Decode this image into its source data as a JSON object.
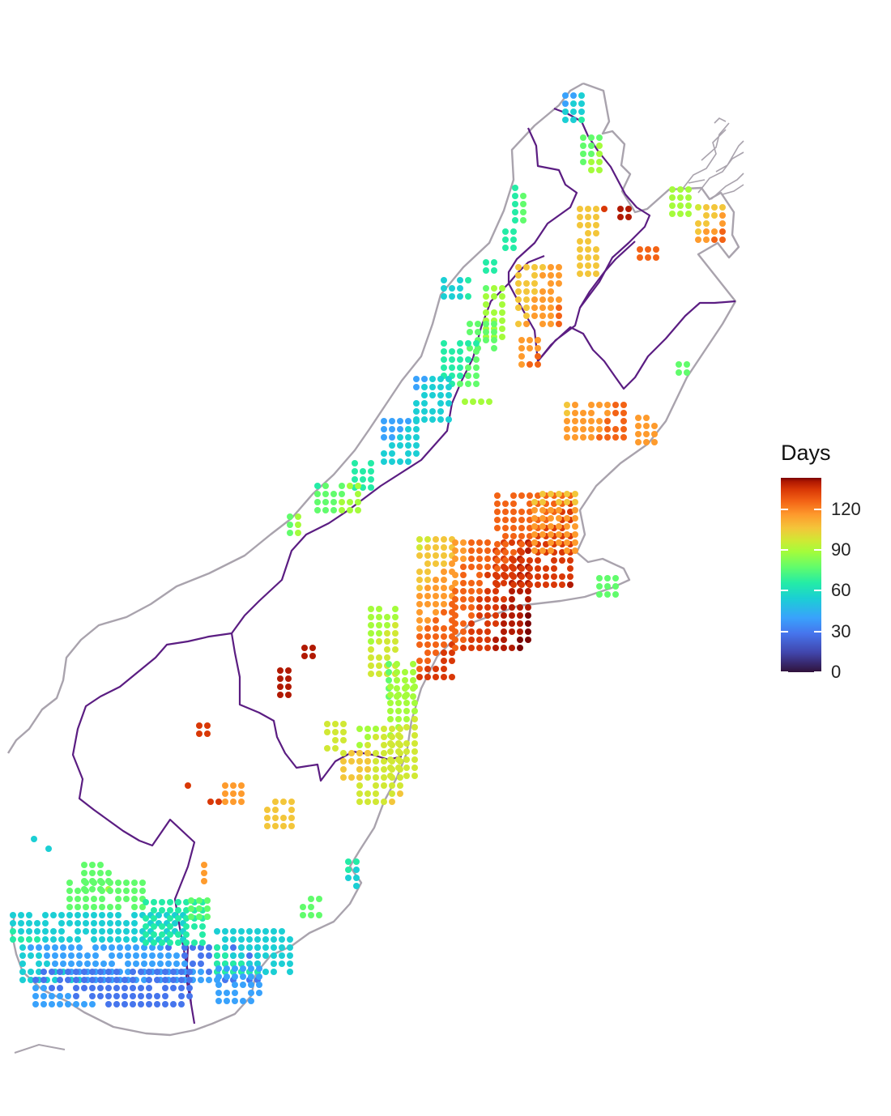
{
  "legend": {
    "title": "Days",
    "ticks": [
      "120",
      "90",
      "60",
      "30",
      "0"
    ],
    "tick_values": [
      120,
      90,
      60,
      30,
      0
    ],
    "range": [
      0,
      143
    ]
  },
  "colors": {
    "coastline": "#a9a3ad",
    "region_boundary": "#5b1d82",
    "scale": [
      "#30123b",
      "#4145ab",
      "#4675ed",
      "#39a2fc",
      "#1bcfd4",
      "#24eca6",
      "#61fc6c",
      "#a4fc3b",
      "#d1e834",
      "#f3c63a",
      "#fe9b2d",
      "#f36315",
      "#d93806",
      "#b11901",
      "#7a0403"
    ]
  }
}
